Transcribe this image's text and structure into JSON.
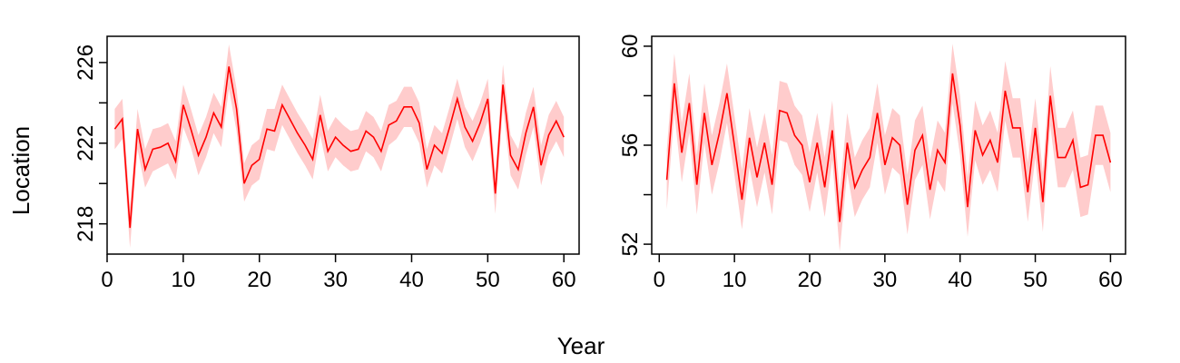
{
  "figure": {
    "xlabel": "Year",
    "ylabel": "Location"
  },
  "chart_data": [
    {
      "type": "line",
      "xlabel": "Year",
      "ylabel": "Location",
      "xlim": [
        0,
        62
      ],
      "ylim": [
        216.5,
        227.3
      ],
      "xticks": [
        0,
        10,
        20,
        30,
        40,
        50,
        60
      ],
      "yticks": [
        218,
        222,
        226
      ],
      "yticks_minor": [
        220,
        224
      ],
      "line_color": "#ff0000",
      "band_color": "#ffcccc",
      "x": [
        1,
        2,
        3,
        4,
        5,
        6,
        7,
        8,
        9,
        10,
        11,
        12,
        13,
        14,
        15,
        16,
        17,
        18,
        19,
        20,
        21,
        22,
        23,
        24,
        25,
        26,
        27,
        28,
        29,
        30,
        31,
        32,
        33,
        34,
        35,
        36,
        37,
        38,
        39,
        40,
        41,
        42,
        43,
        44,
        45,
        46,
        47,
        48,
        49,
        50,
        51,
        52,
        53,
        54,
        55,
        56,
        57,
        58,
        59,
        60
      ],
      "series": [
        {
          "values": [
            222.7,
            223.2,
            217.8,
            222.7,
            220.7,
            221.7,
            221.8,
            222.0,
            221.1,
            223.9,
            222.7,
            221.4,
            222.3,
            223.5,
            222.8,
            225.8,
            223.7,
            220.0,
            220.9,
            221.2,
            222.7,
            222.6,
            223.9,
            223.2,
            222.5,
            221.9,
            221.2,
            223.4,
            221.6,
            222.3,
            221.9,
            221.6,
            221.7,
            222.6,
            222.3,
            221.6,
            222.9,
            223.1,
            223.8,
            223.8,
            223.0,
            220.7,
            221.9,
            221.5,
            222.8,
            224.2,
            222.8,
            222.1,
            223.0,
            224.2,
            219.5,
            224.9,
            221.4,
            220.7,
            222.5,
            223.8,
            220.9,
            222.4,
            223.1,
            222.3
          ],
          "lower": [
            221.7,
            222.2,
            216.8,
            221.7,
            219.8,
            220.6,
            220.8,
            221.0,
            220.2,
            222.8,
            221.8,
            220.4,
            221.3,
            222.5,
            221.8,
            224.7,
            222.6,
            219.1,
            219.9,
            220.2,
            221.7,
            221.6,
            222.9,
            222.2,
            221.5,
            220.9,
            220.2,
            222.4,
            220.6,
            221.3,
            220.9,
            220.6,
            220.7,
            221.6,
            221.3,
            220.6,
            221.9,
            222.2,
            222.8,
            222.8,
            222.0,
            219.8,
            220.9,
            220.5,
            221.8,
            223.2,
            221.8,
            221.1,
            222.0,
            223.1,
            218.5,
            223.8,
            220.4,
            219.7,
            221.4,
            222.8,
            219.9,
            221.4,
            222.1,
            221.3
          ],
          "upper": [
            223.7,
            224.2,
            218.8,
            223.7,
            221.7,
            222.7,
            222.8,
            223.0,
            222.1,
            224.9,
            223.7,
            222.4,
            223.3,
            224.5,
            223.8,
            226.9,
            224.7,
            221.0,
            221.9,
            222.2,
            223.7,
            223.7,
            224.9,
            224.2,
            223.5,
            222.9,
            222.2,
            224.4,
            222.6,
            223.3,
            222.9,
            222.6,
            222.7,
            223.6,
            223.3,
            222.6,
            223.9,
            224.1,
            224.8,
            224.8,
            224.0,
            221.7,
            222.9,
            222.5,
            223.8,
            225.2,
            223.8,
            223.1,
            224.0,
            225.2,
            220.5,
            225.9,
            222.4,
            221.7,
            223.5,
            224.8,
            221.9,
            223.4,
            224.1,
            223.3
          ]
        }
      ]
    },
    {
      "type": "line",
      "xlabel": "Year",
      "ylabel": "Location",
      "xlim": [
        -1,
        62
      ],
      "ylim": [
        51.6,
        60.4
      ],
      "xticks": [
        0,
        10,
        20,
        30,
        40,
        50,
        60
      ],
      "yticks": [
        52,
        56,
        60
      ],
      "yticks_minor": [
        54,
        58
      ],
      "line_color": "#ff0000",
      "band_color": "#ffcccc",
      "x": [
        1,
        2,
        3,
        4,
        5,
        6,
        7,
        8,
        9,
        10,
        11,
        12,
        13,
        14,
        15,
        16,
        17,
        18,
        19,
        20,
        21,
        22,
        23,
        24,
        25,
        26,
        27,
        28,
        29,
        30,
        31,
        32,
        33,
        34,
        35,
        36,
        37,
        38,
        39,
        40,
        41,
        42,
        43,
        44,
        45,
        46,
        47,
        48,
        49,
        50,
        51,
        52,
        53,
        54,
        55,
        56,
        57,
        58,
        59,
        60
      ],
      "series": [
        {
          "values": [
            54.6,
            58.5,
            55.7,
            57.7,
            54.4,
            57.3,
            55.2,
            56.5,
            58.1,
            56.0,
            53.8,
            56.3,
            54.7,
            56.1,
            54.4,
            57.4,
            57.3,
            56.4,
            56.0,
            54.5,
            56.1,
            54.3,
            56.6,
            52.9,
            56.1,
            54.3,
            55.0,
            55.5,
            57.3,
            55.2,
            56.3,
            56.0,
            53.6,
            55.8,
            56.4,
            54.2,
            55.8,
            55.3,
            58.9,
            56.8,
            53.5,
            56.6,
            55.6,
            56.2,
            55.3,
            58.2,
            56.7,
            56.7,
            54.1,
            56.7,
            53.7,
            58.0,
            55.5,
            55.5,
            56.2,
            54.3,
            54.4,
            56.4,
            56.4,
            55.3
          ],
          "lower": [
            53.4,
            57.3,
            54.5,
            56.5,
            53.2,
            56.1,
            54.0,
            55.3,
            56.9,
            54.8,
            52.6,
            55.1,
            53.5,
            54.9,
            53.2,
            56.2,
            56.1,
            55.2,
            54.8,
            53.3,
            54.9,
            53.1,
            55.4,
            51.7,
            54.9,
            53.1,
            53.8,
            54.3,
            56.1,
            54.0,
            55.1,
            54.8,
            52.4,
            54.6,
            55.2,
            53.0,
            54.6,
            54.1,
            57.7,
            55.6,
            52.3,
            55.4,
            54.4,
            55.0,
            54.1,
            57.0,
            55.5,
            55.5,
            52.9,
            55.5,
            52.5,
            56.8,
            54.3,
            54.3,
            55.0,
            53.1,
            53.2,
            55.2,
            55.2,
            54.1
          ],
          "upper": [
            55.8,
            59.7,
            56.9,
            58.9,
            55.6,
            58.5,
            56.4,
            57.7,
            59.3,
            57.2,
            55.0,
            57.5,
            55.9,
            57.3,
            55.6,
            58.6,
            58.5,
            57.6,
            57.2,
            55.7,
            57.3,
            55.5,
            57.8,
            54.1,
            57.3,
            55.5,
            56.2,
            56.7,
            58.5,
            56.4,
            57.5,
            57.2,
            54.8,
            57.0,
            57.6,
            55.4,
            57.0,
            56.5,
            60.1,
            58.0,
            54.7,
            57.8,
            56.8,
            57.4,
            56.5,
            59.4,
            57.9,
            57.9,
            55.3,
            57.9,
            54.9,
            59.2,
            56.7,
            56.7,
            57.4,
            55.5,
            55.6,
            57.6,
            57.6,
            56.5
          ]
        }
      ]
    }
  ]
}
